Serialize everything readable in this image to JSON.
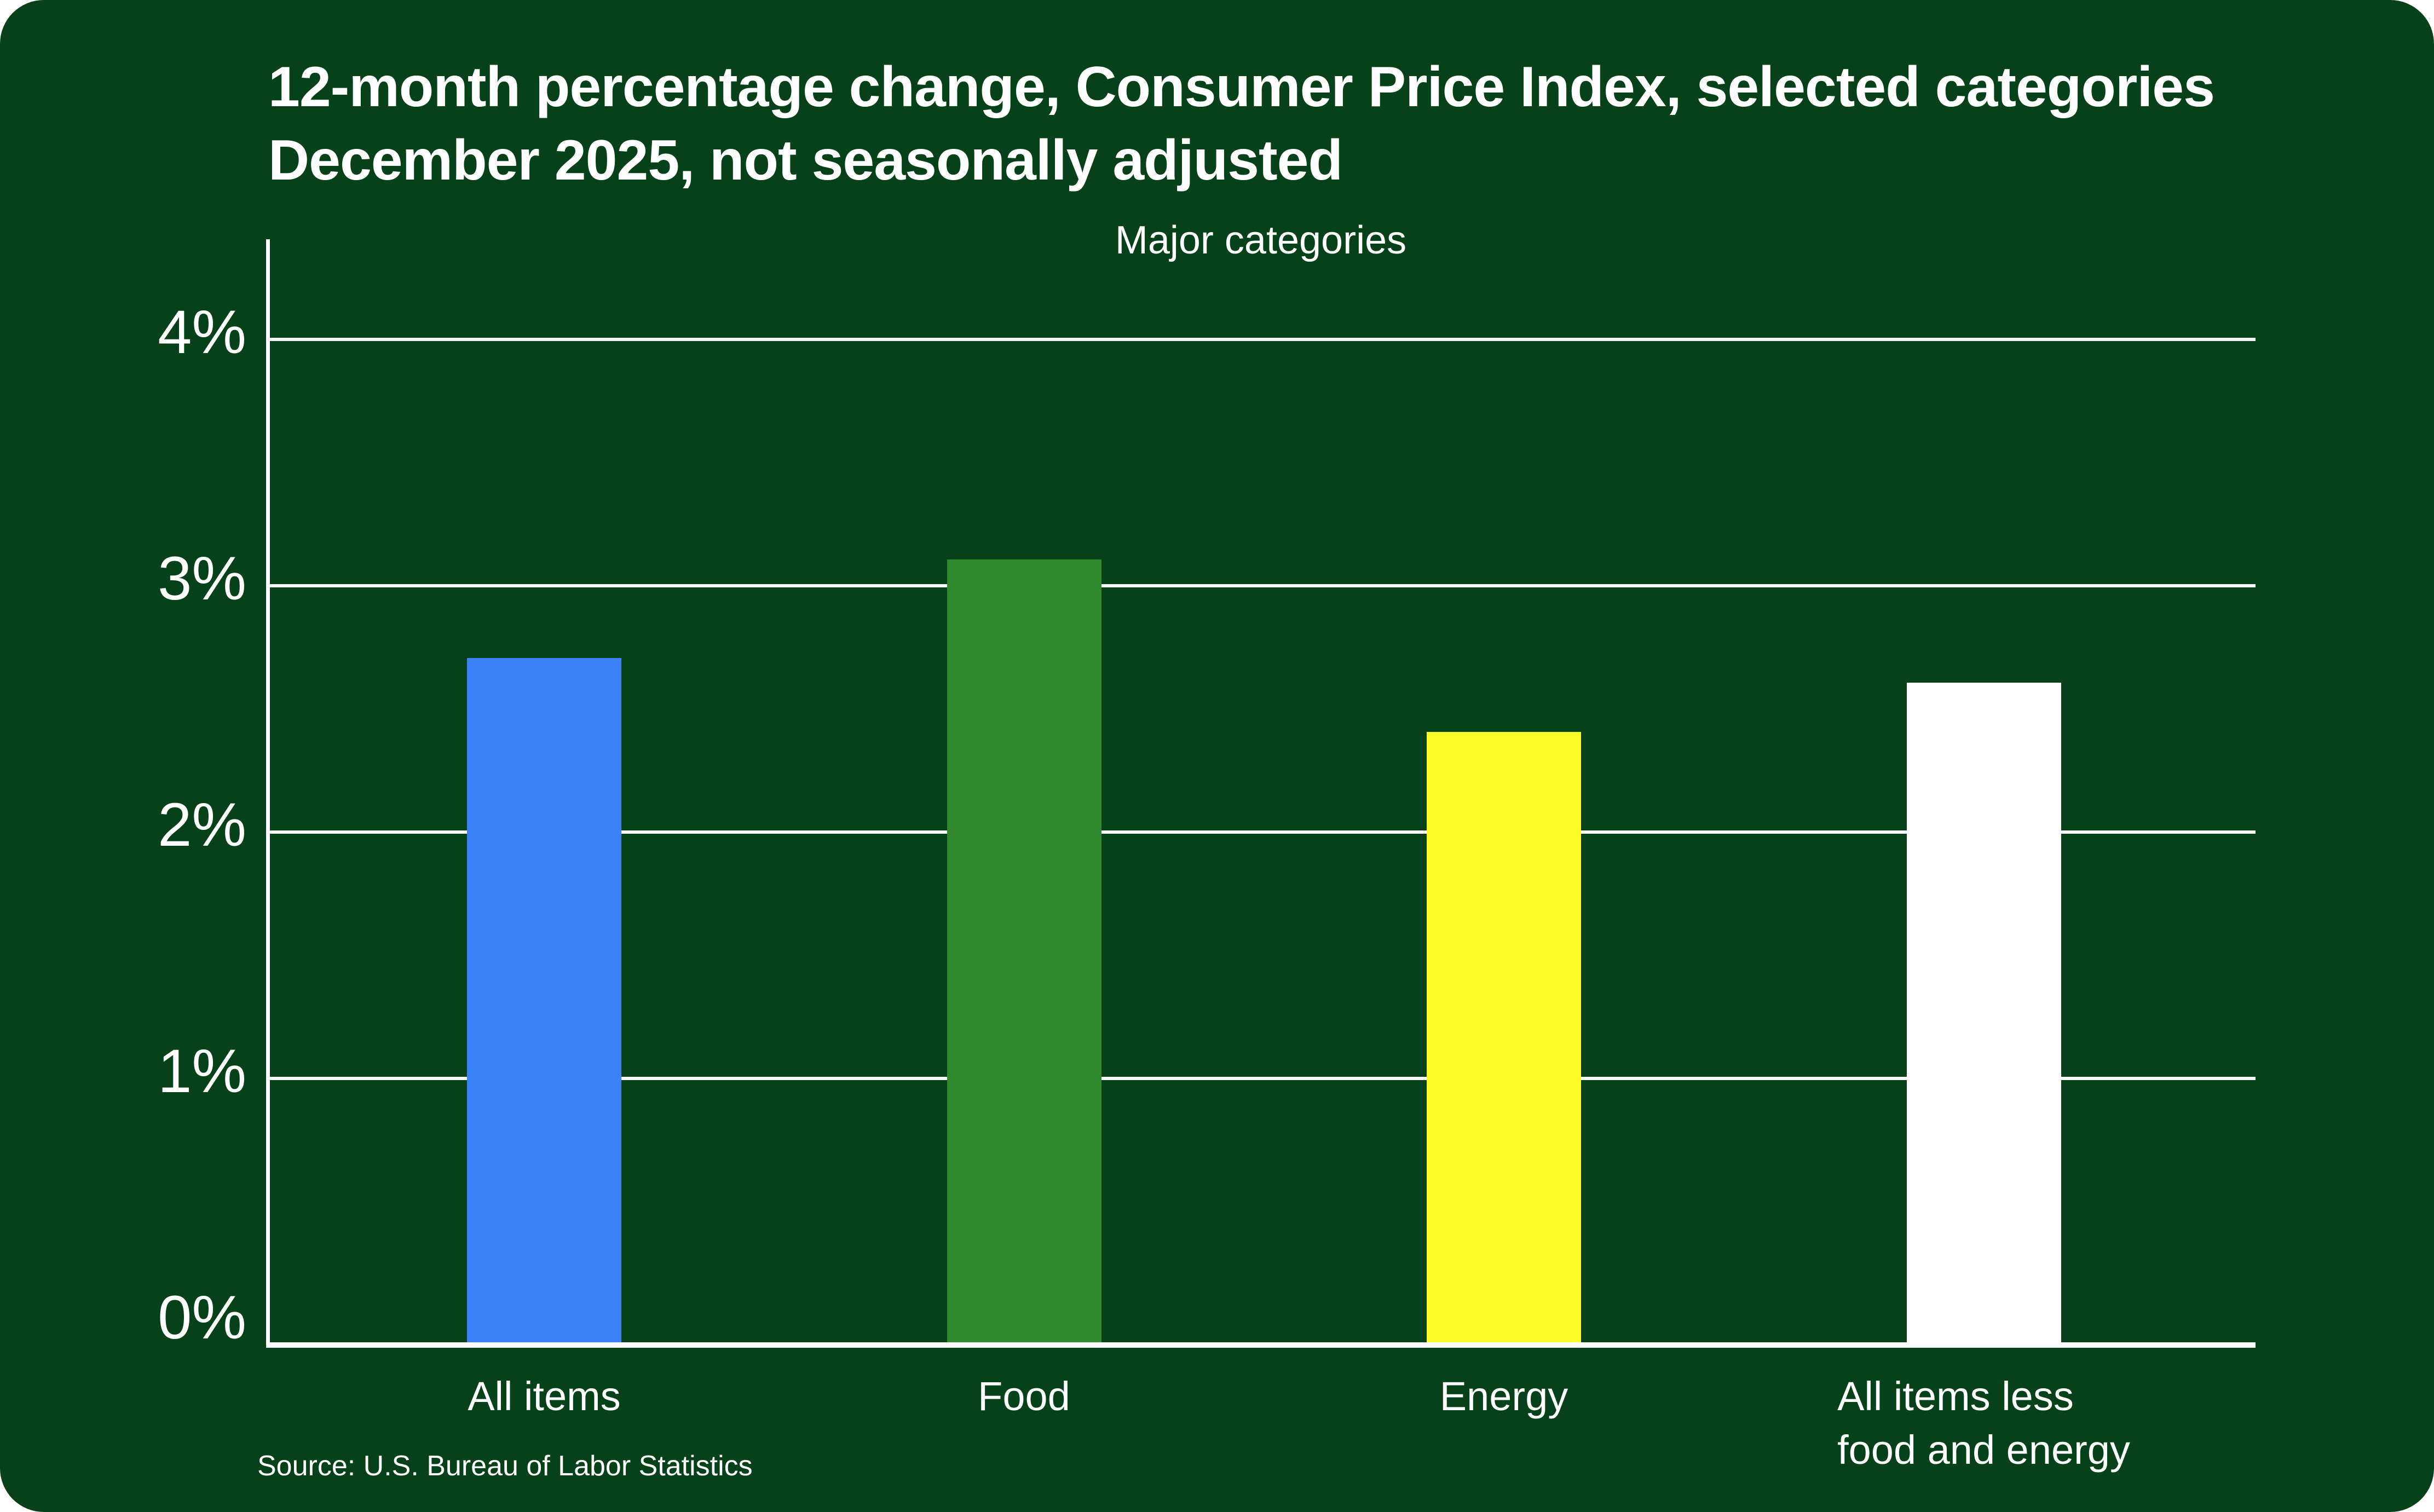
{
  "header": {
    "title_line1": "12-month percentage change, Consumer Price Index, selected categories",
    "title_line2": "December 2025, not seasonally adjusted"
  },
  "chart_data": {
    "type": "bar",
    "title": "Major categories",
    "categories": [
      "All items",
      "Food",
      "Energy",
      "All items less\nfood and energy"
    ],
    "values": [
      2.7,
      3.1,
      2.4,
      2.6
    ],
    "bar_colors": [
      "#3b82f6",
      "#2f8b2e",
      "#fbfb2b",
      "#ffffff"
    ],
    "ylabel": "",
    "xlabel": "",
    "ylim": [
      0,
      4
    ],
    "yticks": [
      0,
      1,
      2,
      3,
      4
    ],
    "ytick_suffix": "%",
    "grid": true,
    "legend": "none"
  },
  "source": "Source: U.S. Bureau of Labor Statistics",
  "colors": {
    "page_background": "#ffffff",
    "card_background": "#07411a",
    "text": "#ffffff",
    "gridline": "#ffffff"
  }
}
